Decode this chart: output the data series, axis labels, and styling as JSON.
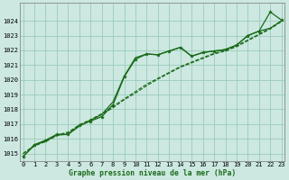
{
  "title": "Graphe pression niveau de la mer (hPa)",
  "background_color": "#cce8e0",
  "grid_color": "#99ccbb",
  "line_color": "#1a6b1a",
  "x_labels": [
    "0",
    "1",
    "2",
    "3",
    "4",
    "5",
    "6",
    "7",
    "8",
    "9",
    "10",
    "11",
    "12",
    "13",
    "14",
    "15",
    "16",
    "17",
    "18",
    "19",
    "20",
    "21",
    "22",
    "23"
  ],
  "ylim": [
    1014.5,
    1025.2
  ],
  "yticks": [
    1015,
    1016,
    1017,
    1018,
    1019,
    1020,
    1021,
    1022,
    1023,
    1024
  ],
  "series": {
    "line_marked": [
      1014.8,
      1015.6,
      1015.9,
      1016.3,
      1016.3,
      1016.9,
      1017.2,
      1017.5,
      1018.3,
      1020.2,
      1021.4,
      1021.75,
      1021.7,
      1021.95,
      1022.2,
      1021.6,
      1021.85,
      1021.95,
      1022.05,
      1022.35,
      1023.0,
      1023.3,
      1024.6,
      1024.05
    ],
    "line_straight1": [
      1015.0,
      1015.55,
      1015.8,
      1016.2,
      1016.4,
      1016.95,
      1017.3,
      1017.7,
      1018.2,
      1018.7,
      1019.2,
      1019.7,
      1020.1,
      1020.5,
      1020.9,
      1021.2,
      1021.5,
      1021.8,
      1022.0,
      1022.3,
      1022.7,
      1023.1,
      1023.5,
      1024.0
    ],
    "line_straight2": [
      1015.0,
      1015.5,
      1015.85,
      1016.25,
      1016.45,
      1016.9,
      1017.25,
      1017.65,
      1018.1,
      1018.65,
      1019.1,
      1019.6,
      1020.05,
      1020.45,
      1020.85,
      1021.15,
      1021.45,
      1021.75,
      1021.95,
      1022.25,
      1022.65,
      1023.05,
      1023.45,
      1023.95
    ],
    "line_steep": [
      1014.8,
      1015.55,
      1015.85,
      1016.25,
      1016.3,
      1016.85,
      1017.25,
      1017.65,
      1018.5,
      1020.25,
      1021.5,
      1021.75,
      1021.7,
      1021.95,
      1022.2,
      1021.6,
      1021.85,
      1021.95,
      1022.05,
      1022.35,
      1023.0,
      1023.3,
      1023.5,
      1024.0
    ]
  }
}
